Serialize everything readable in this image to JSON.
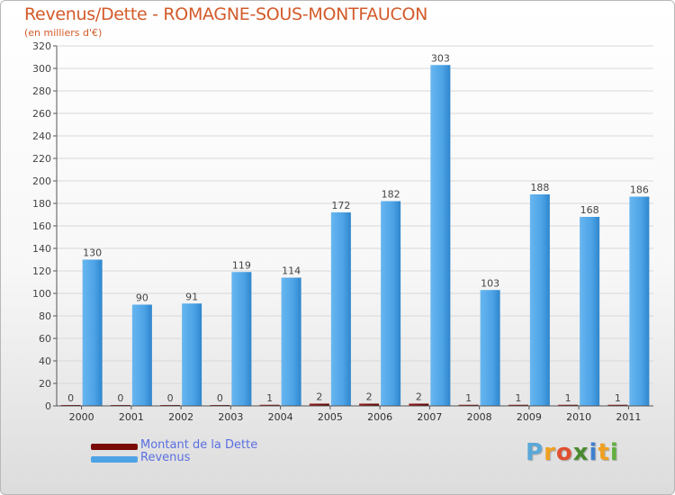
{
  "header": {
    "title": "Revenus/Dette - ROMAGNE-SOUS-MONTFAUCON",
    "subtitle": "(en milliers d'€)"
  },
  "colors": {
    "revenus": "#4da3e6",
    "dette": "#7a0a0a",
    "axis": "#555555",
    "grid": "#d8d8d8",
    "title": "#d35a2a"
  },
  "legend": {
    "items": [
      {
        "label": "Montant de la Dette",
        "color": "#7a0a0a"
      },
      {
        "label": "Revenus",
        "color": "#4da3e6"
      }
    ]
  },
  "logo": {
    "letters": [
      "P",
      "r",
      "o",
      "x",
      "i",
      "t",
      "i"
    ],
    "colors": [
      "#5aa8d8",
      "#f0a020",
      "#e05030",
      "#4a8a30",
      "#3f7fd0",
      "#f0a020",
      "#60b040"
    ]
  },
  "chart_data": {
    "type": "bar",
    "title": "Revenus/Dette - ROMAGNE-SOUS-MONTFAUCON",
    "ylabel": "(en milliers d'€)",
    "categories": [
      "2000",
      "2001",
      "2002",
      "2003",
      "2004",
      "2005",
      "2006",
      "2007",
      "2008",
      "2009",
      "2010",
      "2011"
    ],
    "series": [
      {
        "name": "Montant de la Dette",
        "values": [
          0,
          0,
          0,
          0,
          1,
          2,
          2,
          2,
          1,
          1,
          1,
          1
        ]
      },
      {
        "name": "Revenus",
        "values": [
          130,
          90,
          91,
          119,
          114,
          172,
          182,
          303,
          103,
          188,
          168,
          186
        ]
      }
    ],
    "ylim": [
      0,
      320
    ],
    "ytick_step": 20,
    "grid": true,
    "legend": "bottom-left"
  }
}
